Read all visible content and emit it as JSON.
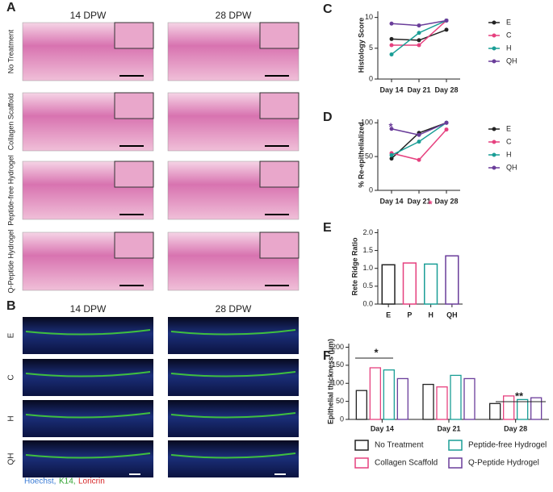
{
  "panels": {
    "a": {
      "label": "A",
      "columns": [
        "14 DPW",
        "28 DPW"
      ],
      "rows": [
        "No Treatment",
        "Collagen Scaffold",
        "Peptide-free Hydrogel",
        "Q-Peptide Hydrogel"
      ]
    },
    "b": {
      "label": "B",
      "columns": [
        "14 DPW",
        "28 DPW"
      ],
      "rows": [
        "E",
        "C",
        "H",
        "QH"
      ],
      "stains": [
        "Hoechst,",
        "K14,",
        "Loricrin"
      ]
    }
  },
  "chart_data": [
    {
      "type": "line",
      "label": "C",
      "ylabel": "Histology Score",
      "categories": [
        "Day 14",
        "Day 21",
        "Day 28"
      ],
      "series": [
        {
          "name": "E",
          "color": "#222222",
          "values": [
            6.5,
            6.3,
            8
          ]
        },
        {
          "name": "C",
          "color": "#e6417f",
          "values": [
            5.5,
            5.5,
            9.5
          ]
        },
        {
          "name": "H",
          "color": "#1a9e96",
          "values": [
            4,
            7.5,
            9.5
          ]
        },
        {
          "name": "QH",
          "color": "#6a3d9a",
          "values": [
            9,
            8.7,
            9.5
          ]
        }
      ],
      "ylim": [
        0,
        11
      ],
      "yticks": [
        0,
        5,
        10
      ]
    },
    {
      "type": "line",
      "label": "D",
      "ylabel": "% Re-epithelialized",
      "categories": [
        "Day 14",
        "Day 21",
        "Day 28"
      ],
      "series": [
        {
          "name": "E",
          "color": "#222222",
          "values": [
            47,
            85,
            100
          ]
        },
        {
          "name": "C",
          "color": "#e6417f",
          "values": [
            55,
            45,
            90
          ]
        },
        {
          "name": "H",
          "color": "#1a9e96",
          "values": [
            52,
            72,
            100
          ]
        },
        {
          "name": "QH",
          "color": "#6a3d9a",
          "values": [
            91,
            82,
            100
          ]
        }
      ],
      "ylim": [
        0,
        105
      ],
      "yticks": [
        0,
        50,
        100
      ],
      "annotations": [
        "*",
        "*"
      ]
    },
    {
      "type": "bar",
      "label": "E",
      "ylabel": "Rete Ridge Ratio",
      "categories": [
        "E",
        "P",
        "H",
        "QH"
      ],
      "values": [
        1.1,
        1.15,
        1.12,
        1.35
      ],
      "colors": [
        "#222222",
        "#e6417f",
        "#1a9e96",
        "#6a3d9a"
      ],
      "ylim": [
        0,
        2.1
      ],
      "yticks": [
        {
          "value": 0,
          "label": "0.0"
        },
        {
          "value": 0.5,
          "label": "0.5"
        },
        {
          "value": 1,
          "label": "1.0"
        },
        {
          "value": 1.5,
          "label": "1.5"
        },
        {
          "value": 2,
          "label": "2.0"
        }
      ]
    },
    {
      "type": "grouped-bar",
      "label": "F",
      "ylabel": "Epithelial thickness (μm)",
      "categories": [
        "Day 14",
        "Day 21",
        "Day 28"
      ],
      "series": [
        {
          "name": "No Treatment",
          "color": "#222222",
          "values": [
            80,
            97,
            44
          ]
        },
        {
          "name": "Collagen Scaffold",
          "color": "#e6417f",
          "values": [
            143,
            90,
            65
          ]
        },
        {
          "name": "Peptide-free Hydrogel",
          "color": "#1a9e96",
          "values": [
            137,
            122,
            55
          ]
        },
        {
          "name": "Q-Peptide Hydrogel",
          "color": "#6a3d9a",
          "values": [
            113,
            113,
            60
          ]
        }
      ],
      "ylim": [
        0,
        210
      ],
      "yticks": [
        0,
        50,
        100,
        150,
        200
      ],
      "annotations": [
        "*",
        "**"
      ]
    }
  ]
}
